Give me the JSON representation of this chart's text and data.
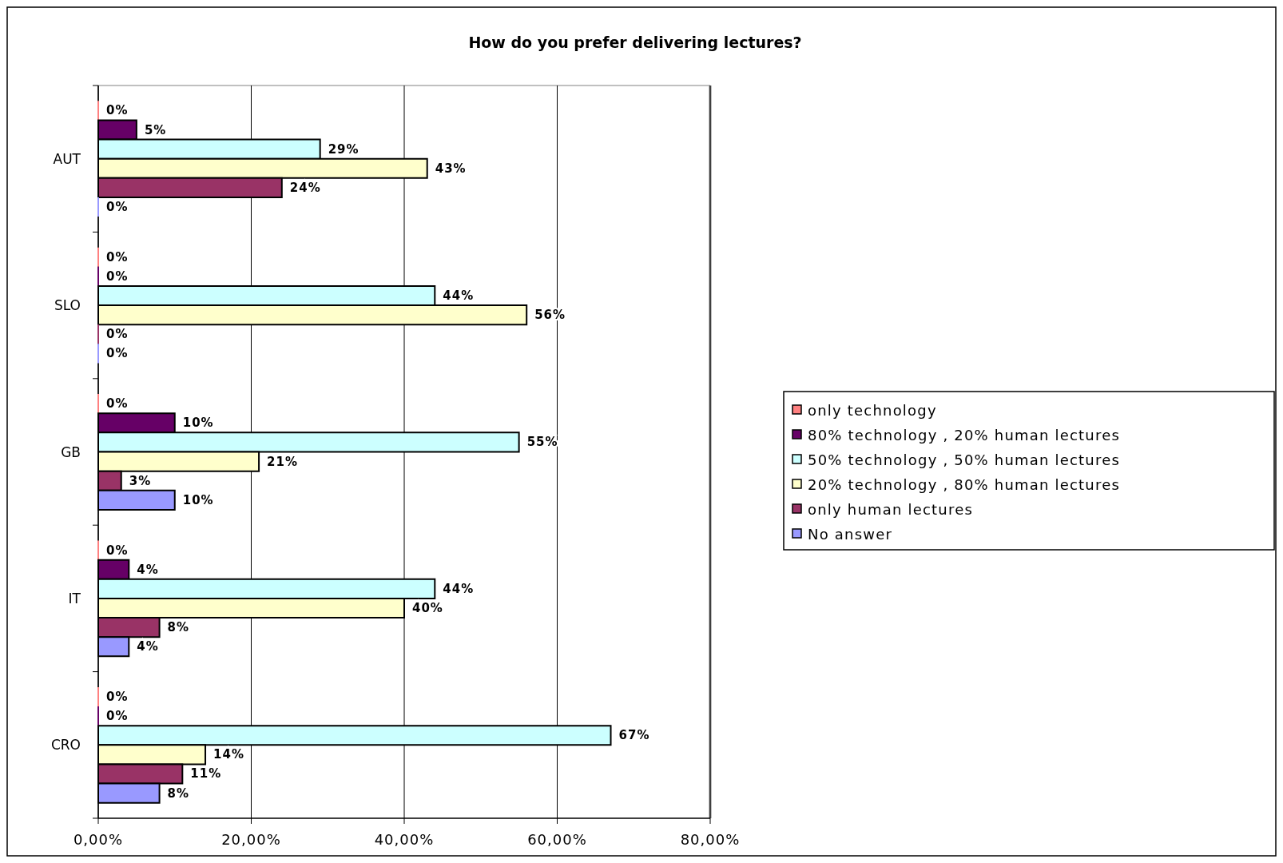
{
  "chart_data": {
    "type": "bar",
    "orientation": "horizontal",
    "title": "How do you prefer delivering lectures?",
    "categories": [
      "AUT",
      "SLO",
      "GB",
      "IT",
      "CRO"
    ],
    "series": [
      {
        "name": "only technology",
        "color": "#ff8080",
        "values": [
          0,
          0,
          0,
          0,
          0
        ],
        "value_labels": [
          "0%",
          "0%",
          "0%",
          "0%",
          "0%"
        ]
      },
      {
        "name": "80% technology , 20% human lectures",
        "color": "#660066",
        "values": [
          5,
          0,
          10,
          4,
          0
        ],
        "value_labels": [
          "5%",
          "0%",
          "10%",
          "4%",
          "0%"
        ]
      },
      {
        "name": "50% technology , 50% human lectures",
        "color": "#ccffff",
        "values": [
          29,
          44,
          55,
          44,
          67
        ],
        "value_labels": [
          "29%",
          "44%",
          "55%",
          "44%",
          "67%"
        ]
      },
      {
        "name": "20% technology , 80% human lectures",
        "color": "#ffffcc",
        "values": [
          43,
          56,
          21,
          40,
          14
        ],
        "value_labels": [
          "43%",
          "56%",
          "21%",
          "40%",
          "14%"
        ]
      },
      {
        "name": "only human lectures",
        "color": "#993366",
        "values": [
          24,
          0,
          3,
          8,
          11
        ],
        "value_labels": [
          "24%",
          "0%",
          "3%",
          "8%",
          "11%"
        ]
      },
      {
        "name": "No answer",
        "color": "#9999ff",
        "values": [
          0,
          0,
          10,
          4,
          8
        ],
        "value_labels": [
          "0%",
          "0%",
          "10%",
          "4%",
          "8%"
        ]
      }
    ],
    "xlim": [
      0,
      80
    ],
    "xticks": [
      {
        "value": 0,
        "label": "0,00%"
      },
      {
        "value": 20,
        "label": "20,00%"
      },
      {
        "value": 40,
        "label": "40,00%"
      },
      {
        "value": 60,
        "label": "60,00%"
      },
      {
        "value": 80,
        "label": "80,00%"
      }
    ],
    "grid": "x",
    "legend": "right"
  }
}
